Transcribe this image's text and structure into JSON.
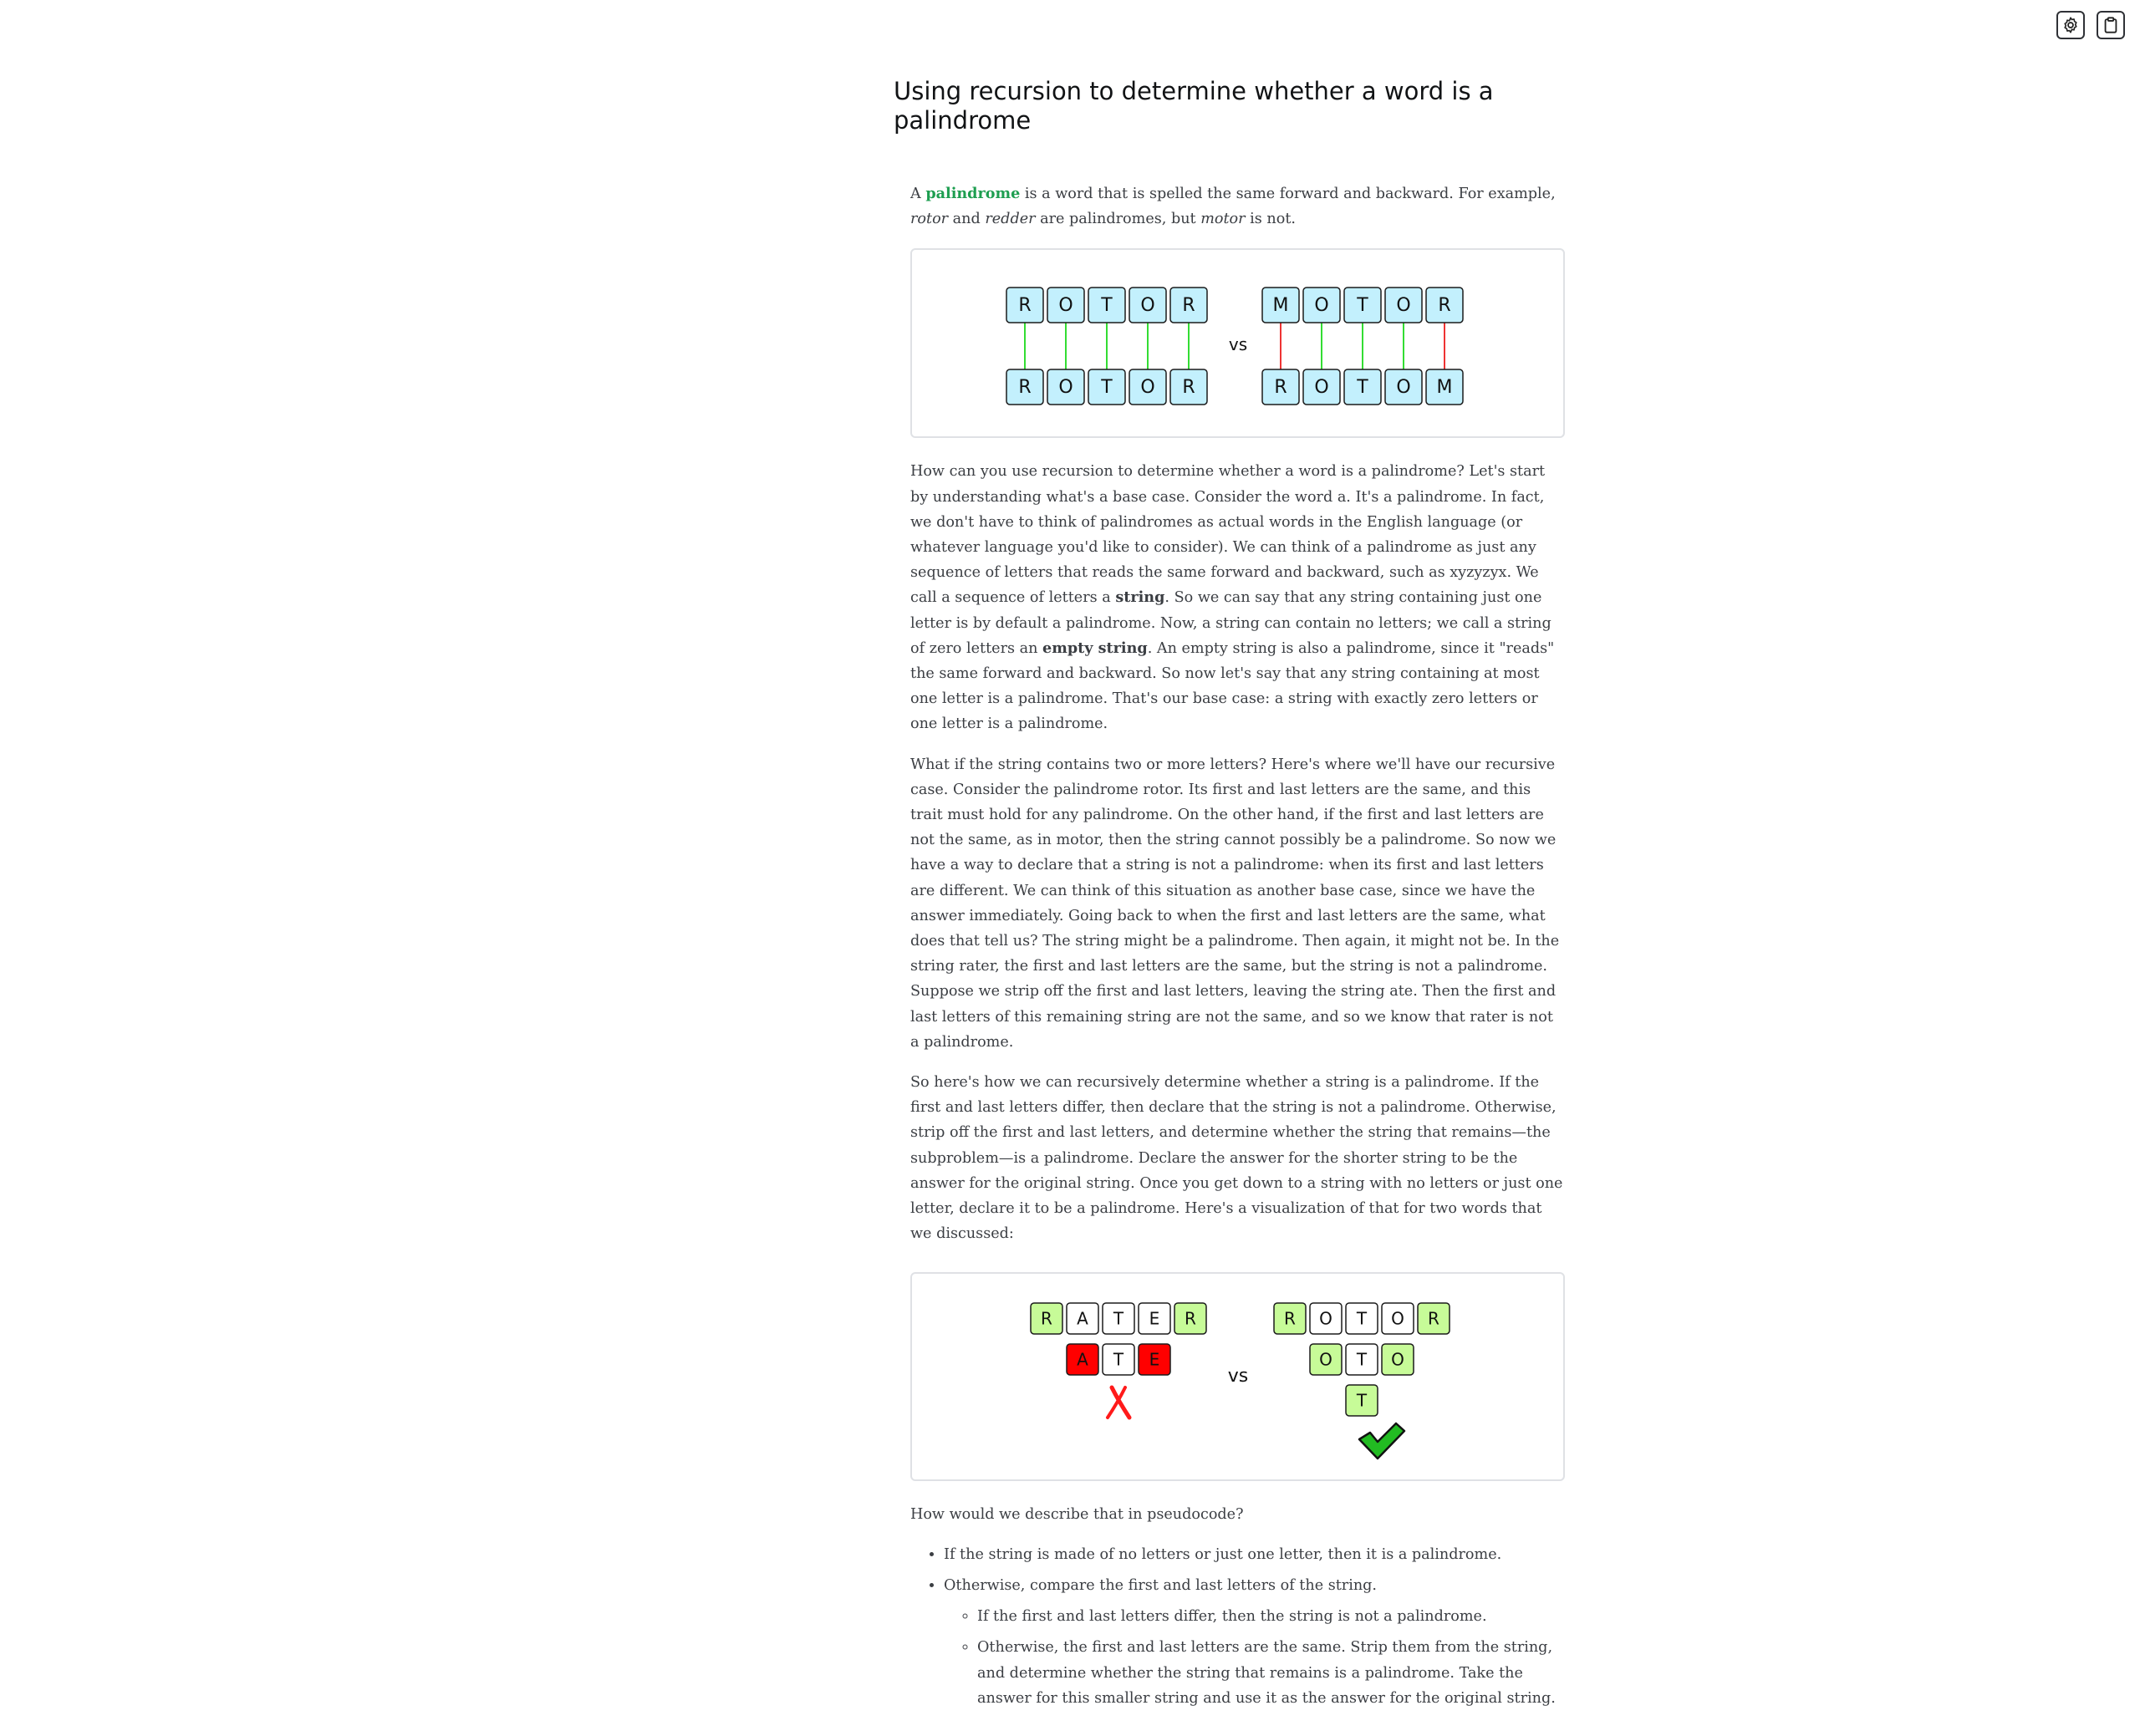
{
  "toolbar": {
    "settings_icon": "gear-icon",
    "clipboard_icon": "clipboard-icon"
  },
  "title": "Using recursion to determine whether a word is a palindrome",
  "intro": {
    "t1": "A ",
    "keyword": "palindrome",
    "t2": " is a word that is spelled the same forward and backward. For example, ",
    "ex1": "rotor",
    "t3": " and ",
    "ex2": "redder",
    "t4": " are palindromes, but ",
    "ex3": "motor",
    "t5": " is not."
  },
  "figure1": {
    "left_top": [
      "R",
      "O",
      "T",
      "O",
      "R"
    ],
    "left_bottom": [
      "R",
      "O",
      "T",
      "O",
      "R"
    ],
    "left_matches": [
      true,
      true,
      true,
      true,
      true
    ],
    "vs": "vs",
    "right_top": [
      "M",
      "O",
      "T",
      "O",
      "R"
    ],
    "right_bottom": [
      "R",
      "O",
      "T",
      "O",
      "M"
    ],
    "right_matches": [
      false,
      true,
      true,
      true,
      false
    ],
    "colors": {
      "tile_fill": "#c3f0fd",
      "tile_stroke": "#1b1b1b",
      "match_line": "#33dd33",
      "mismatch_line": "#ee3333"
    }
  },
  "para1": {
    "t1": "How can you use recursion to determine whether a word is a palindrome? Let's start by understanding what's a base case. Consider the word a. It's a palindrome. In fact, we don't have to think of palindromes as actual words in the English language (or whatever language you'd like to consider). We can think of a palindrome as just any sequence of letters that reads the same forward and backward, such as xyzyzyx. We call a sequence of letters a ",
    "b1": "string",
    "t2": ". So we can say that any string containing just one letter is by default a palindrome. Now, a string can contain no letters; we call a string of zero letters an ",
    "b2": "empty string",
    "t3": ". An empty string is also a palindrome, since it \"reads\" the same forward and backward. So now let's say that any string containing at most one letter is a palindrome. That's our base case: a string with exactly zero letters or one letter is a palindrome."
  },
  "para2": "What if the string contains two or more letters? Here's where we'll have our recursive case. Consider the palindrome rotor. Its first and last letters are the same, and this trait must hold for any palindrome. On the other hand, if the first and last letters are not the same, as in motor, then the string cannot possibly be a palindrome. So now we have a way to declare that a string is not a palindrome: when its first and last letters are different. We can think of this situation as another base case, since we have the answer immediately. Going back to when the first and last letters are the same, what does that tell us? The string might be a palindrome. Then again, it might not be. In the string rater, the first and last letters are the same, but the string is not a palindrome. Suppose we strip off the first and last letters, leaving the string ate. Then the first and last letters of this remaining string are not the same, and so we know that rater is not a palindrome.",
  "para3": "So here's how we can recursively determine whether a string is a palindrome. If the first and last letters differ, then declare that the string is not a palindrome. Otherwise, strip off the first and last letters, and determine whether the string that remains—the subproblem—is a palindrome. Declare the answer for the shorter string to be the answer for the original string. Once you get down to a string with no letters or just one letter, declare it to be a palindrome. Here's a visualization of that for two words that we discussed:",
  "figure2": {
    "rater_rows": [
      {
        "letters": [
          "R",
          "A",
          "T",
          "E",
          "R"
        ],
        "state": [
          "match",
          "none",
          "none",
          "none",
          "match"
        ]
      },
      {
        "letters": [
          "A",
          "T",
          "E"
        ],
        "state": [
          "mismatch",
          "none",
          "mismatch"
        ]
      }
    ],
    "rater_result_icon": "cross-icon",
    "vs": "vs",
    "rotor_rows": [
      {
        "letters": [
          "R",
          "O",
          "T",
          "O",
          "R"
        ],
        "state": [
          "match",
          "none",
          "none",
          "none",
          "match"
        ]
      },
      {
        "letters": [
          "O",
          "T",
          "O"
        ],
        "state": [
          "match",
          "none",
          "match"
        ]
      },
      {
        "letters": [
          "T"
        ],
        "state": [
          "match"
        ]
      }
    ],
    "rotor_result_icon": "checkmark-icon",
    "colors": {
      "match": "#c7fb98",
      "mismatch": "#ff0000",
      "none": "#ffffff",
      "cross": "#ff1a1a",
      "check": "#22bb22"
    }
  },
  "pseudo_intro": "How would we describe that in pseudocode?",
  "pseudocode": {
    "item1": "If the string is made of no letters or just one letter, then it is a palindrome.",
    "item2": "Otherwise, compare the first and last letters of the string.",
    "sub1": "If the first and last letters differ, then the string is not a palindrome.",
    "sub2": "Otherwise, the first and last letters are the same. Strip them from the string, and determine whether the string that remains is a palindrome. Take the answer for this smaller string and use it as the answer for the original string."
  }
}
